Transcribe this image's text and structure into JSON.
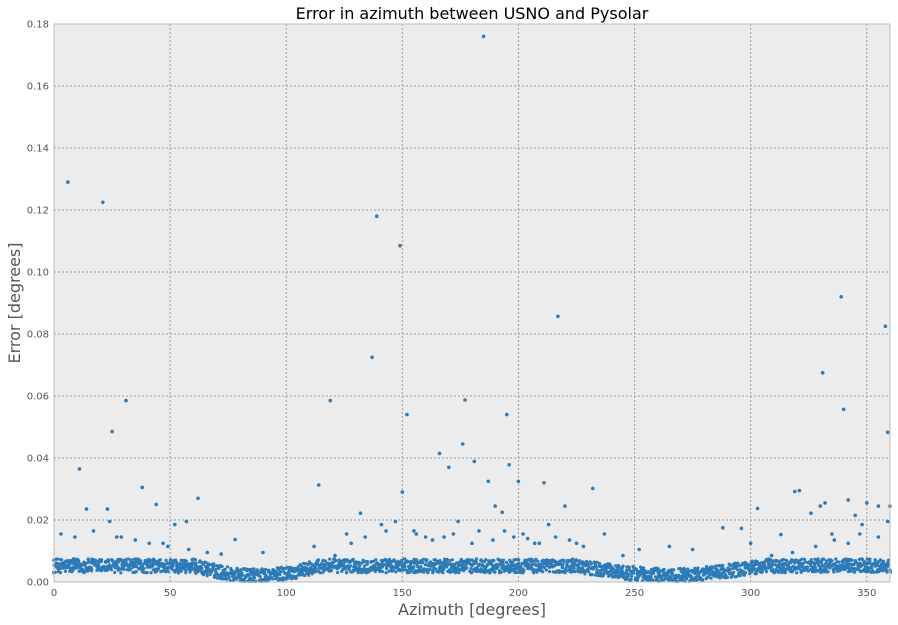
{
  "chart_data": {
    "type": "scatter",
    "title": "Error in azimuth between USNO and Pysolar",
    "xlabel": "Azimuth [degrees]",
    "ylabel": "Error [degrees]",
    "xlim": [
      0,
      360
    ],
    "ylim": [
      0,
      0.18
    ],
    "x_ticks": [
      0,
      50,
      100,
      150,
      200,
      250,
      300,
      350
    ],
    "y_ticks": [
      "0.00",
      "0.02",
      "0.04",
      "0.06",
      "0.08",
      "0.10",
      "0.12",
      "0.14",
      "0.16",
      "0.18"
    ],
    "grid": true,
    "marker_color": "#2b7bb9",
    "background_color": "#ececec",
    "baseline_description": "dense band of points along the bottom: roughly 0.004-0.008 deg for most azimuths, dipping to ~0-0.003 around 70-110, 240-300",
    "series": [
      {
        "x": [
          6,
          11,
          14,
          21,
          23,
          24,
          25,
          27,
          31,
          38,
          44,
          47,
          52,
          57,
          62,
          72,
          78,
          90,
          112,
          114,
          119,
          126,
          132,
          137,
          139,
          141,
          147,
          149,
          150,
          152,
          155,
          160,
          166,
          170,
          174,
          176,
          177,
          180,
          181,
          185,
          187,
          190,
          193,
          194,
          195,
          196,
          200,
          204,
          207,
          211,
          213,
          216,
          217,
          220,
          225,
          232,
          237,
          245,
          252,
          265,
          275,
          288,
          296,
          300,
          303,
          313,
          319,
          321,
          326,
          330,
          331,
          332,
          335,
          339,
          340,
          342,
          345,
          348,
          350,
          355,
          358,
          359,
          360,
          359,
          355,
          347,
          342,
          336,
          328,
          318,
          309,
          3,
          9,
          17,
          29,
          35,
          41,
          49,
          58,
          66,
          121,
          128,
          134,
          143,
          156,
          163,
          168,
          172,
          183,
          189,
          198,
          202,
          209,
          222,
          228
        ],
        "y": [
          0.129,
          0.0365,
          0.0235,
          0.1225,
          0.0235,
          0.0195,
          0.0485,
          0.0145,
          0.0585,
          0.0305,
          0.025,
          0.0125,
          0.0185,
          0.0195,
          0.027,
          0.009,
          0.0137,
          0.0095,
          0.0115,
          0.0313,
          0.0585,
          0.0155,
          0.0222,
          0.0725,
          0.118,
          0.0185,
          0.0195,
          0.1085,
          0.029,
          0.054,
          0.0165,
          0.0145,
          0.0415,
          0.037,
          0.0195,
          0.0445,
          0.0587,
          0.0125,
          0.0389,
          0.176,
          0.0325,
          0.0245,
          0.0225,
          0.0165,
          0.054,
          0.0378,
          0.0325,
          0.014,
          0.0125,
          0.032,
          0.0185,
          0.0145,
          0.0857,
          0.0245,
          0.0125,
          0.0302,
          0.0155,
          0.0085,
          0.0105,
          0.0115,
          0.0105,
          0.0175,
          0.0173,
          0.0125,
          0.0237,
          0.0153,
          0.0292,
          0.0295,
          0.0222,
          0.0245,
          0.0675,
          0.0255,
          0.0155,
          0.092,
          0.0557,
          0.0265,
          0.0215,
          0.0185,
          0.0255,
          0.0245,
          0.0825,
          0.0483,
          0.0245,
          0.0195,
          0.0145,
          0.0155,
          0.0125,
          0.0135,
          0.0115,
          0.0095,
          0.0085,
          0.0155,
          0.0145,
          0.0165,
          0.0145,
          0.0135,
          0.0125,
          0.0115,
          0.0105,
          0.0095,
          0.0085,
          0.0125,
          0.0145,
          0.0165,
          0.0155,
          0.0135,
          0.0145,
          0.0155,
          0.0165,
          0.0135,
          0.0145,
          0.0155,
          0.0125,
          0.0135,
          0.0115
        ]
      }
    ]
  }
}
